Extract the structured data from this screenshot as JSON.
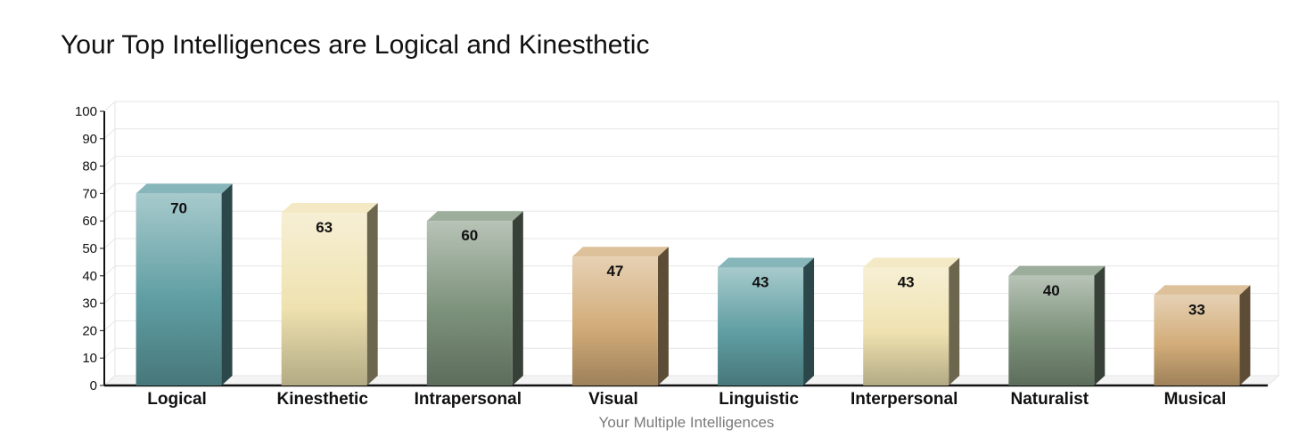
{
  "chart_data": {
    "type": "bar",
    "title": "Your Top Intelligences are Logical and Kinesthetic",
    "xlabel": "Your Multiple Intelligences",
    "ylabel": "",
    "ylim": [
      0,
      100
    ],
    "yticks": [
      0,
      10,
      20,
      30,
      40,
      50,
      60,
      70,
      80,
      90,
      100
    ],
    "categories": [
      "Logical",
      "Kinesthetic",
      "Intrapersonal",
      "Visual",
      "Linguistic",
      "Interpersonal",
      "Naturalist",
      "Musical"
    ],
    "values": [
      70,
      63,
      60,
      47,
      43,
      43,
      40,
      33
    ],
    "data_labels": [
      "70",
      "63",
      "60",
      "47",
      "43",
      "43",
      "40",
      "33"
    ],
    "grid": true,
    "style": "3d-bars",
    "colors": [
      "#5f9ea3",
      "#efe2b0",
      "#7c917a",
      "#d2ac78",
      "#5f9ea3",
      "#efe2b0",
      "#7c917a",
      "#d2ac78"
    ]
  }
}
